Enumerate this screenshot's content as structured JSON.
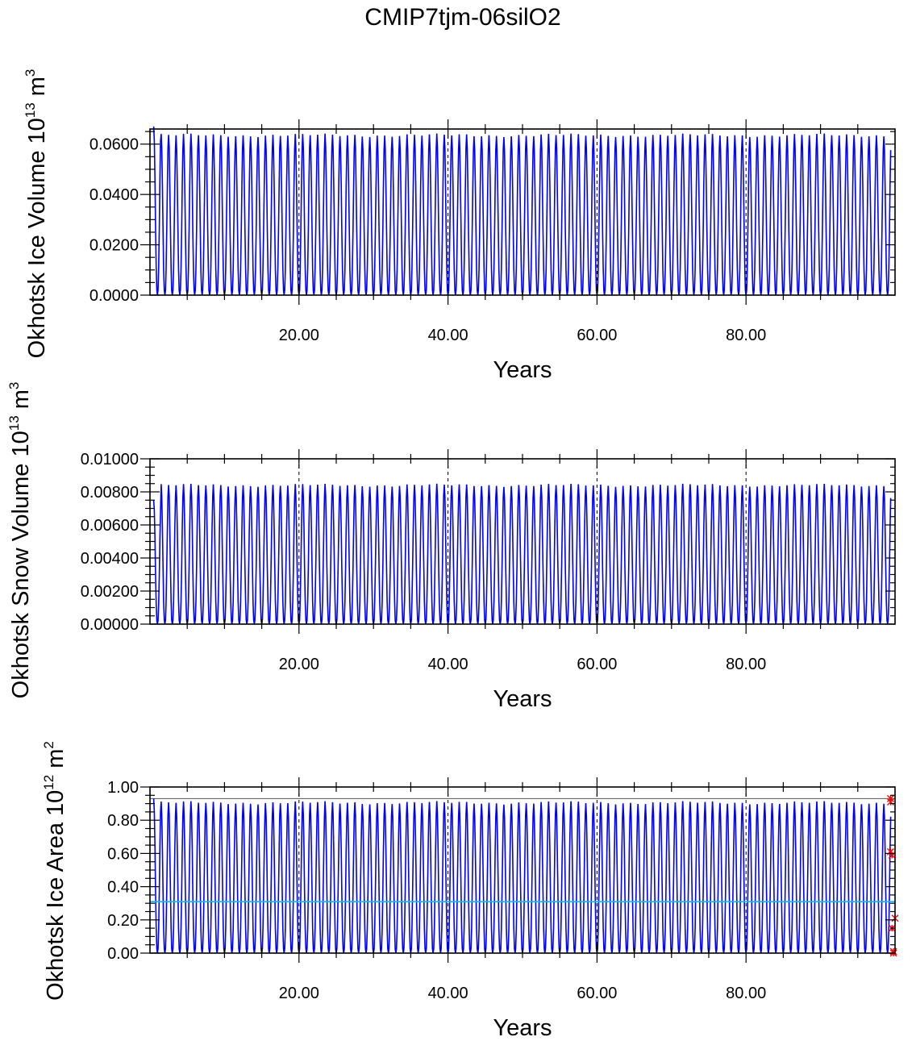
{
  "title": "CMIP7tjm-06silO2",
  "colors": {
    "series": "#0000ff",
    "reference": "#00bfff",
    "marker": "#ff0000",
    "axis": "#000000"
  },
  "chart_data": [
    {
      "type": "line",
      "ylabel_text": "Okhotsk Ice Volume 10",
      "ylabel_exp": "13",
      "ylabel_unit": " m",
      "ylabel_unit_exp": "3",
      "xlabel": "Years",
      "xlim": [
        0,
        100
      ],
      "ylim": [
        0,
        0.066
      ],
      "xticks": [
        20,
        40,
        60,
        80
      ],
      "xtick_labels": [
        "20.00",
        "40.00",
        "60.00",
        "80.00"
      ],
      "yticks": [
        0,
        0.02,
        0.04,
        0.06
      ],
      "ytick_labels": [
        "0.0000",
        "0.0200",
        "0.0400",
        "0.0600"
      ],
      "annual_peak_first": 0.067,
      "annual_peak_typical": 0.0635,
      "annual_min": 0.0,
      "years": 99
    },
    {
      "type": "line",
      "ylabel_text": "Okhotsk Snow Volume 10",
      "ylabel_exp": "13",
      "ylabel_unit": " m",
      "ylabel_unit_exp": "3",
      "xlabel": "Years",
      "xlim": [
        0,
        100
      ],
      "ylim": [
        0,
        0.01
      ],
      "xticks": [
        20,
        40,
        60,
        80
      ],
      "xtick_labels": [
        "20.00",
        "40.00",
        "60.00",
        "80.00"
      ],
      "yticks": [
        0,
        0.002,
        0.004,
        0.006,
        0.008,
        0.01
      ],
      "ytick_labels": [
        "0.00000",
        "0.00200",
        "0.00400",
        "0.00600",
        "0.00800",
        "0.01000"
      ],
      "annual_peak_first": 0.0075,
      "annual_peak_typical": 0.0084,
      "annual_min": 0.0,
      "years": 99
    },
    {
      "type": "line",
      "ylabel_text": "Okhotsk Ice Area 10",
      "ylabel_exp": "12",
      "ylabel_unit": " m",
      "ylabel_unit_exp": "2",
      "xlabel": "Years",
      "xlim": [
        0,
        100
      ],
      "ylim": [
        0,
        1.0
      ],
      "xticks": [
        20,
        40,
        60,
        80
      ],
      "xtick_labels": [
        "20.00",
        "40.00",
        "60.00",
        "80.00"
      ],
      "yticks": [
        0,
        0.2,
        0.4,
        0.6,
        0.8,
        1.0
      ],
      "ytick_labels": [
        "0.00",
        "0.20",
        "0.40",
        "0.60",
        "0.80",
        "1.00"
      ],
      "annual_peak_first": 0.93,
      "annual_peak_typical": 0.905,
      "annual_min": 0.0,
      "years": 99,
      "reference_max": 0.93,
      "reference_mean": 0.31,
      "obs_markers": [
        {
          "x": 99.4,
          "y": 0.93
        },
        {
          "x": 99.4,
          "y": 0.91
        },
        {
          "x": 99.4,
          "y": 0.61
        },
        {
          "x": 99.6,
          "y": 0.59
        },
        {
          "x": 99.6,
          "y": 0.15
        },
        {
          "x": 100.0,
          "y": 0.21
        },
        {
          "x": 99.8,
          "y": 0.01
        },
        {
          "x": 99.8,
          "y": 0.0
        }
      ]
    }
  ]
}
